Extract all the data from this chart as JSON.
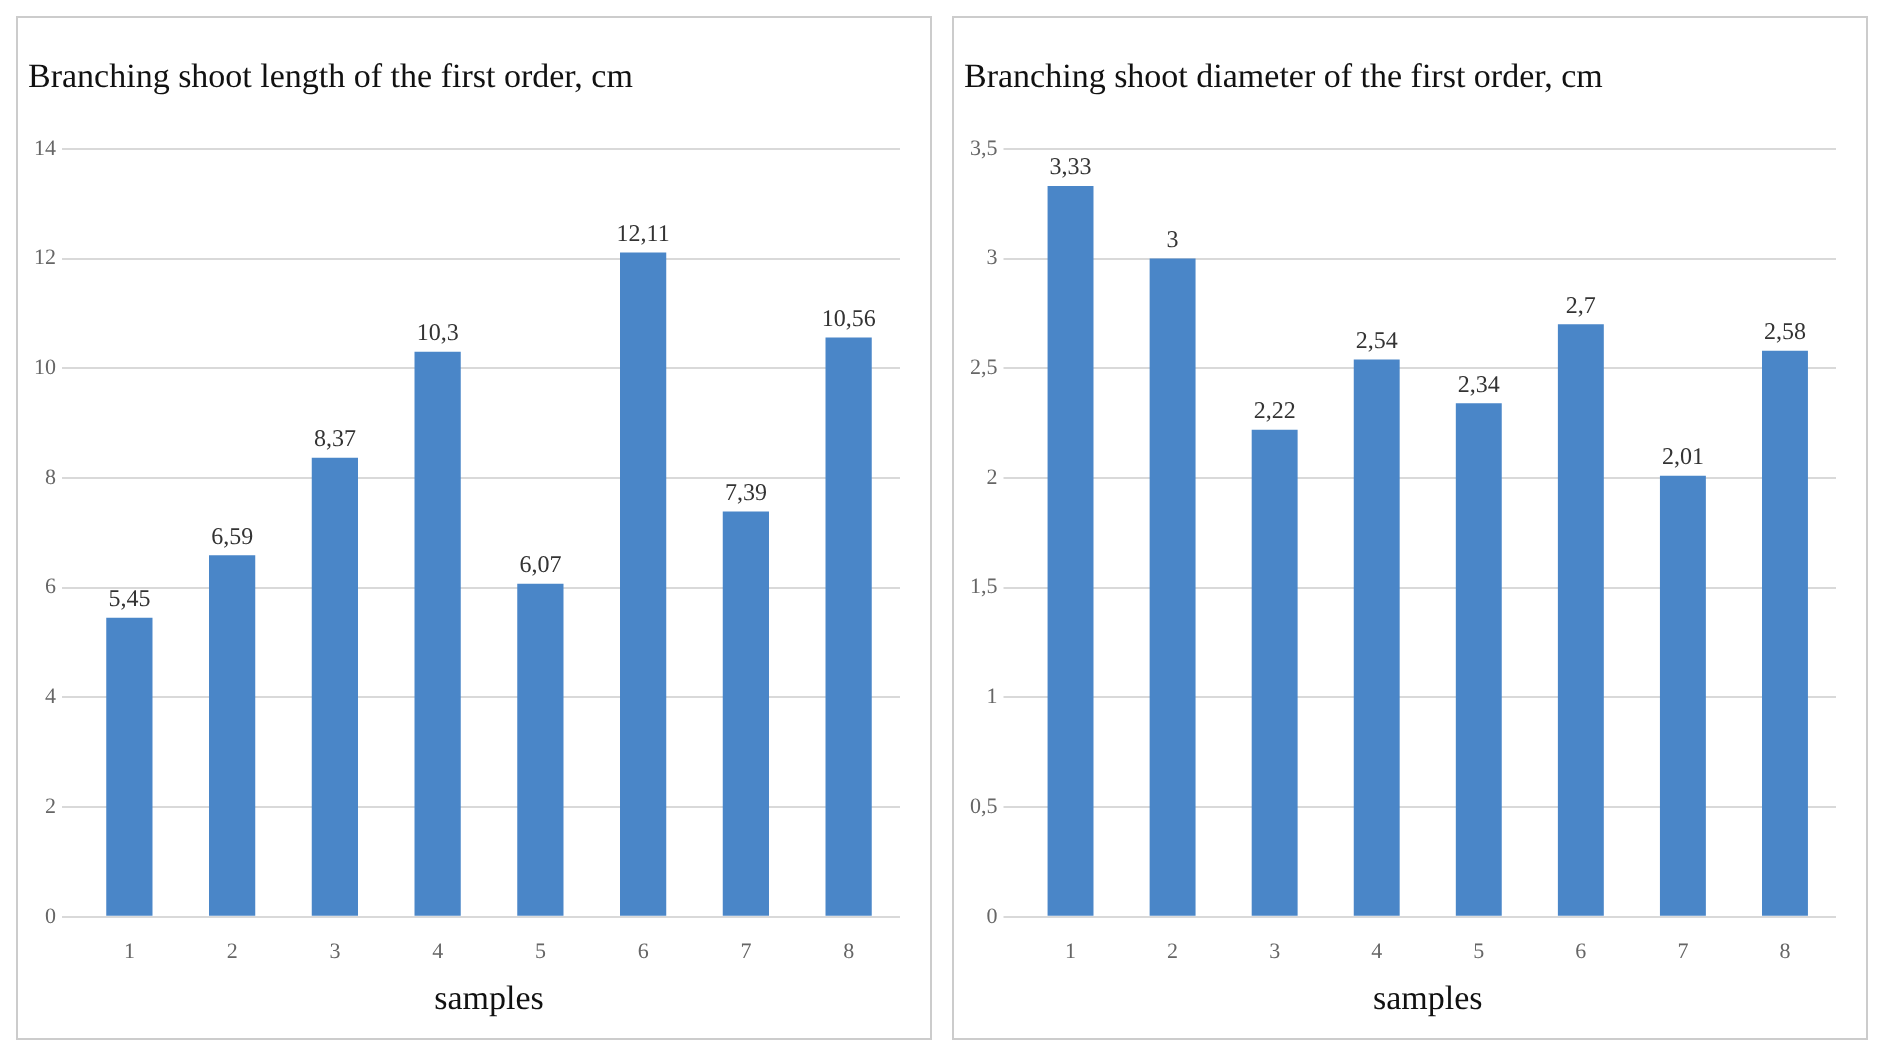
{
  "chart_data": [
    {
      "type": "bar",
      "title": "Branching shoot length of the first order, cm",
      "xlabel": "samples",
      "categories": [
        "1",
        "2",
        "3",
        "4",
        "5",
        "6",
        "7",
        "8"
      ],
      "values": [
        5.45,
        6.59,
        8.37,
        10.3,
        6.07,
        12.11,
        7.39,
        10.56
      ],
      "value_labels": [
        "5,45",
        "6,59",
        "8,37",
        "10,3",
        "6,07",
        "12,11",
        "7,39",
        "10,56"
      ],
      "color": "#4a86c8",
      "ylim": [
        0,
        14
      ],
      "yticks": [
        0,
        2,
        4,
        6,
        8,
        10,
        12,
        14
      ],
      "grid": "y"
    },
    {
      "type": "bar",
      "title": "Branching shoot diameter of the first order, cm",
      "xlabel": "samples",
      "categories": [
        "1",
        "2",
        "3",
        "4",
        "5",
        "6",
        "7",
        "8"
      ],
      "values": [
        3.33,
        3,
        2.22,
        2.54,
        2.34,
        2.7,
        2.01,
        2.58
      ],
      "value_labels": [
        "3,33",
        "3",
        "2,22",
        "2,54",
        "2,34",
        "2,7",
        "2,01",
        "2,58"
      ],
      "color": "#4a86c8",
      "ylim": [
        0,
        3.5
      ],
      "yticks": [
        0,
        {
          "value": 0.5,
          "label": "0,5"
        },
        1,
        {
          "value": 1.5,
          "label": "1,5"
        },
        2,
        {
          "value": 2.5,
          "label": "2,5"
        },
        3,
        {
          "value": 3.5,
          "label": "3,5"
        }
      ],
      "grid": "y"
    }
  ]
}
